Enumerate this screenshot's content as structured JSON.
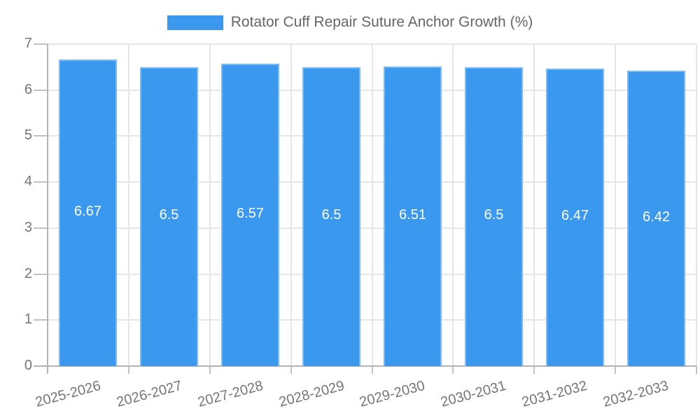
{
  "chart_data": {
    "type": "bar",
    "title": "Rotator Cuff Repair Suture Anchor Growth (%)",
    "categories": [
      "2025-2026",
      "2026-2027",
      "2027-2028",
      "2028-2029",
      "2029-2030",
      "2030-2031",
      "2031-2032",
      "2032-2033"
    ],
    "values": [
      6.67,
      6.5,
      6.57,
      6.5,
      6.51,
      6.5,
      6.47,
      6.42
    ],
    "value_labels": [
      "6.67",
      "6.5",
      "6.57",
      "6.5",
      "6.51",
      "6.5",
      "6.47",
      "6.42"
    ],
    "xlabel": "",
    "ylabel": "",
    "ylim": [
      0,
      7
    ],
    "yticks": [
      "0",
      "1",
      "2",
      "3",
      "4",
      "5",
      "6",
      "7"
    ],
    "grid": true,
    "legend_position": "top",
    "colors": {
      "bar_fill": "#3A99EE",
      "bar_border": "#7CBAF3",
      "bar_label_text": "#FFFFFF",
      "grid_line": "#E6E6E6",
      "axis_line": "#B3B3B3",
      "tick_mark": "#C2C2C2",
      "tick_label_text": "#757575",
      "title_text": "#666666"
    }
  }
}
